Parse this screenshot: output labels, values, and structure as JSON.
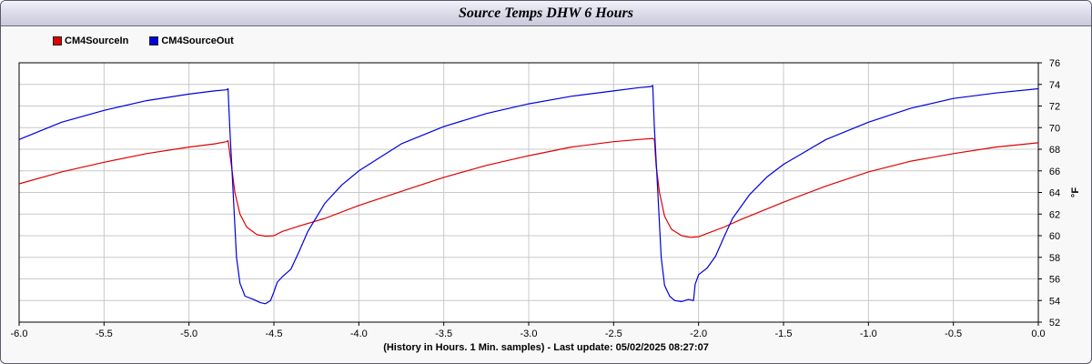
{
  "window": {
    "title": "Source Temps DHW 6 Hours",
    "footer": "(History in Hours. 1 Min. samples) - Last update: 05/02/2025 08:27:07"
  },
  "chart_data": {
    "type": "line",
    "title": "Source Temps DHW 6 Hours",
    "xlabel": "(History in Hours. 1 Min. samples) - Last update: 05/02/2025 08:27:07",
    "ylabel": "°F",
    "xlim": [
      -6.0,
      0.0
    ],
    "ylim": [
      52,
      76
    ],
    "x_ticks": [
      "-6.0",
      "-5.5",
      "-5.0",
      "-4.5",
      "-4.0",
      "-3.5",
      "-3.0",
      "-2.5",
      "-2.0",
      "-1.5",
      "-1.0",
      "-0.5",
      "0.0"
    ],
    "y_ticks": [
      "52",
      "54",
      "56",
      "58",
      "60",
      "62",
      "64",
      "66",
      "68",
      "70",
      "72",
      "74",
      "76"
    ],
    "grid": true,
    "legend_position": "top-left",
    "series": [
      {
        "name": "CM4SourceIn",
        "color": "#e00000",
        "points": [
          [
            -6.0,
            64.8
          ],
          [
            -5.75,
            65.9
          ],
          [
            -5.5,
            66.8
          ],
          [
            -5.25,
            67.6
          ],
          [
            -5.0,
            68.2
          ],
          [
            -4.85,
            68.5
          ],
          [
            -4.78,
            68.7
          ],
          [
            -4.77,
            68.8
          ],
          [
            -4.75,
            66.5
          ],
          [
            -4.73,
            64.0
          ],
          [
            -4.7,
            62.0
          ],
          [
            -4.66,
            60.8
          ],
          [
            -4.6,
            60.1
          ],
          [
            -4.55,
            59.95
          ],
          [
            -4.5,
            60.0
          ],
          [
            -4.45,
            60.4
          ],
          [
            -4.35,
            60.9
          ],
          [
            -4.2,
            61.6
          ],
          [
            -4.0,
            62.8
          ],
          [
            -3.75,
            64.1
          ],
          [
            -3.5,
            65.4
          ],
          [
            -3.25,
            66.5
          ],
          [
            -3.0,
            67.4
          ],
          [
            -2.75,
            68.2
          ],
          [
            -2.5,
            68.7
          ],
          [
            -2.35,
            68.9
          ],
          [
            -2.27,
            69.0
          ],
          [
            -2.26,
            68.9
          ],
          [
            -2.25,
            66.5
          ],
          [
            -2.23,
            64.0
          ],
          [
            -2.2,
            61.8
          ],
          [
            -2.16,
            60.6
          ],
          [
            -2.1,
            60.0
          ],
          [
            -2.05,
            59.85
          ],
          [
            -2.0,
            59.9
          ],
          [
            -1.95,
            60.2
          ],
          [
            -1.85,
            60.8
          ],
          [
            -1.75,
            61.5
          ],
          [
            -1.5,
            63.1
          ],
          [
            -1.25,
            64.6
          ],
          [
            -1.0,
            65.9
          ],
          [
            -0.75,
            66.9
          ],
          [
            -0.5,
            67.6
          ],
          [
            -0.25,
            68.2
          ],
          [
            0.0,
            68.6
          ]
        ]
      },
      {
        "name": "CM4SourceOut",
        "color": "#0000dd",
        "points": [
          [
            -6.0,
            68.9
          ],
          [
            -5.75,
            70.5
          ],
          [
            -5.5,
            71.6
          ],
          [
            -5.25,
            72.5
          ],
          [
            -5.0,
            73.1
          ],
          [
            -4.85,
            73.4
          ],
          [
            -4.78,
            73.5
          ],
          [
            -4.77,
            73.6
          ],
          [
            -4.76,
            70.0
          ],
          [
            -4.74,
            64.0
          ],
          [
            -4.72,
            58.0
          ],
          [
            -4.7,
            55.6
          ],
          [
            -4.67,
            54.4
          ],
          [
            -4.62,
            54.1
          ],
          [
            -4.58,
            53.8
          ],
          [
            -4.55,
            53.7
          ],
          [
            -4.52,
            54.0
          ],
          [
            -4.5,
            54.8
          ],
          [
            -4.48,
            55.7
          ],
          [
            -4.45,
            56.2
          ],
          [
            -4.4,
            56.9
          ],
          [
            -4.35,
            58.6
          ],
          [
            -4.3,
            60.4
          ],
          [
            -4.2,
            63.0
          ],
          [
            -4.1,
            64.7
          ],
          [
            -4.0,
            66.0
          ],
          [
            -3.75,
            68.5
          ],
          [
            -3.5,
            70.1
          ],
          [
            -3.25,
            71.3
          ],
          [
            -3.0,
            72.2
          ],
          [
            -2.75,
            72.9
          ],
          [
            -2.5,
            73.4
          ],
          [
            -2.35,
            73.7
          ],
          [
            -2.28,
            73.8
          ],
          [
            -2.27,
            73.9
          ],
          [
            -2.26,
            70.0
          ],
          [
            -2.24,
            64.0
          ],
          [
            -2.22,
            58.0
          ],
          [
            -2.2,
            55.4
          ],
          [
            -2.17,
            54.4
          ],
          [
            -2.14,
            54.0
          ],
          [
            -2.1,
            53.9
          ],
          [
            -2.06,
            54.1
          ],
          [
            -2.03,
            54.0
          ],
          [
            -2.02,
            55.5
          ],
          [
            -2.0,
            56.4
          ],
          [
            -1.95,
            57.0
          ],
          [
            -1.9,
            58.1
          ],
          [
            -1.85,
            59.9
          ],
          [
            -1.8,
            61.6
          ],
          [
            -1.7,
            63.8
          ],
          [
            -1.6,
            65.4
          ],
          [
            -1.5,
            66.6
          ],
          [
            -1.25,
            68.9
          ],
          [
            -1.0,
            70.5
          ],
          [
            -0.75,
            71.8
          ],
          [
            -0.5,
            72.7
          ],
          [
            -0.25,
            73.2
          ],
          [
            0.0,
            73.6
          ]
        ]
      }
    ]
  }
}
